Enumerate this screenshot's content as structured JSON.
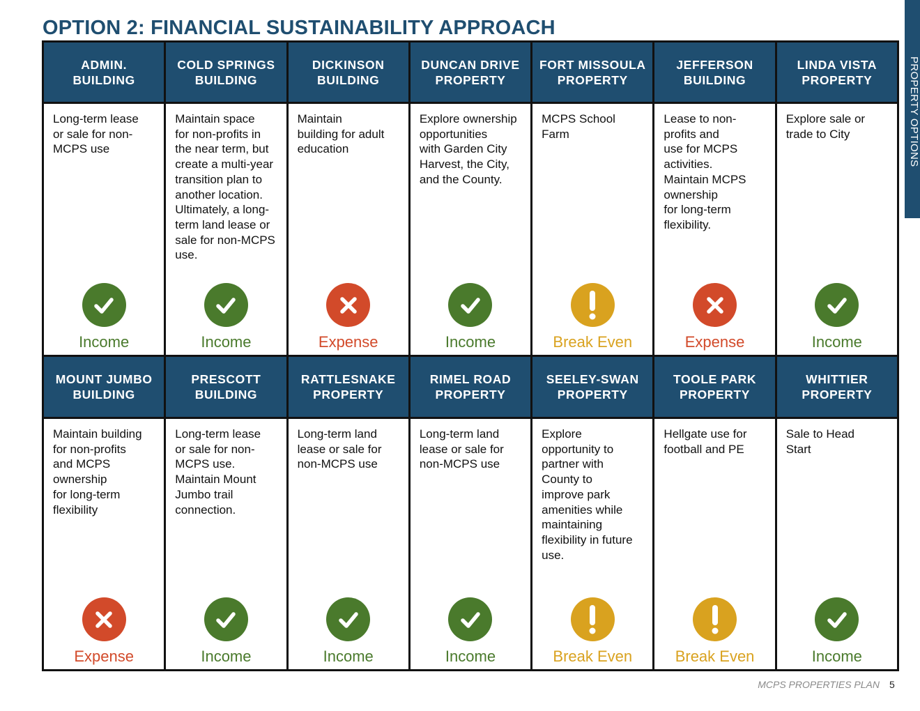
{
  "title": "OPTION 2: FINANCIAL SUSTAINABILITY APPROACH",
  "side_tab": "PROPERTY OPTIONS",
  "colors": {
    "header": "#1f4e70",
    "income": "#4a7a2c",
    "expense": "#d24a2a",
    "break_even": "#d9a21f"
  },
  "rows": [
    [
      {
        "name": "ADMIN.\nBUILDING",
        "description": "Long-term lease\nor sale for non-\nMCPS use",
        "status": "Income",
        "icon": "check-icon",
        "color": "#4a7a2c"
      },
      {
        "name": "COLD SPRINGS\nBUILDING",
        "description": "Maintain space\nfor non-profits in\nthe near term, but\ncreate a multi-year\ntransition plan to\nanother location.\nUltimately, a long-\nterm land lease or\nsale for non-MCPS\nuse.",
        "status": "Income",
        "icon": "check-icon",
        "color": "#4a7a2c"
      },
      {
        "name": "DICKINSON\nBUILDING",
        "description": "Maintain\nbuilding for adult\neducation",
        "status": "Expense",
        "icon": "x-icon",
        "color": "#d24a2a"
      },
      {
        "name": "DUNCAN DRIVE\nPROPERTY",
        "description": "Explore ownership\nopportunities\nwith Garden City\nHarvest, the City,\nand the County.",
        "status": "Income",
        "icon": "check-icon",
        "color": "#4a7a2c"
      },
      {
        "name": "FORT MISSOULA\nPROPERTY",
        "description": "MCPS School\nFarm",
        "status": "Break Even",
        "icon": "exclamation-icon",
        "color": "#d9a21f"
      },
      {
        "name": "JEFFERSON\nBUILDING",
        "description": "Lease to non-\nprofits and\nuse for MCPS\nactivities.\nMaintain MCPS\nownership\nfor long-term\nflexibility.",
        "status": "Expense",
        "icon": "x-icon",
        "color": "#d24a2a"
      },
      {
        "name": "LINDA VISTA\nPROPERTY",
        "description": "Explore sale or\ntrade to City",
        "status": "Income",
        "icon": "check-icon",
        "color": "#4a7a2c"
      }
    ],
    [
      {
        "name": "MOUNT JUMBO\nBUILDING",
        "description": "Maintain building\nfor non-profits\nand MCPS\nownership\nfor long-term\nflexibility",
        "status": "Expense",
        "icon": "x-icon",
        "color": "#d24a2a"
      },
      {
        "name": "PRESCOTT\nBUILDING",
        "description": "Long-term lease\nor sale for non-\nMCPS use.\nMaintain Mount\nJumbo trail\nconnection.",
        "status": "Income",
        "icon": "check-icon",
        "color": "#4a7a2c"
      },
      {
        "name": "RATTLESNAKE\nPROPERTY",
        "description": "Long-term land\nlease or sale for\nnon-MCPS use",
        "status": "Income",
        "icon": "check-icon",
        "color": "#4a7a2c"
      },
      {
        "name": "RIMEL ROAD\nPROPERTY",
        "description": "Long-term land\nlease or sale for\nnon-MCPS use",
        "status": "Income",
        "icon": "check-icon",
        "color": "#4a7a2c"
      },
      {
        "name": "SEELEY-SWAN\nPROPERTY",
        "description": "Explore\nopportunity to\npartner with\nCounty to\nimprove park\namenities while\nmaintaining\nflexibility in future\nuse.",
        "status": "Break Even",
        "icon": "exclamation-icon",
        "color": "#d9a21f"
      },
      {
        "name": "TOOLE PARK\nPROPERTY",
        "description": "Hellgate use for\nfootball and PE",
        "status": "Break Even",
        "icon": "exclamation-icon",
        "color": "#d9a21f"
      },
      {
        "name": "WHITTIER\nPROPERTY",
        "description": "Sale to Head\nStart",
        "status": "Income",
        "icon": "check-icon",
        "color": "#4a7a2c"
      }
    ]
  ],
  "footer": {
    "label": "MCPS PROPERTIES PLAN",
    "page": "5"
  }
}
